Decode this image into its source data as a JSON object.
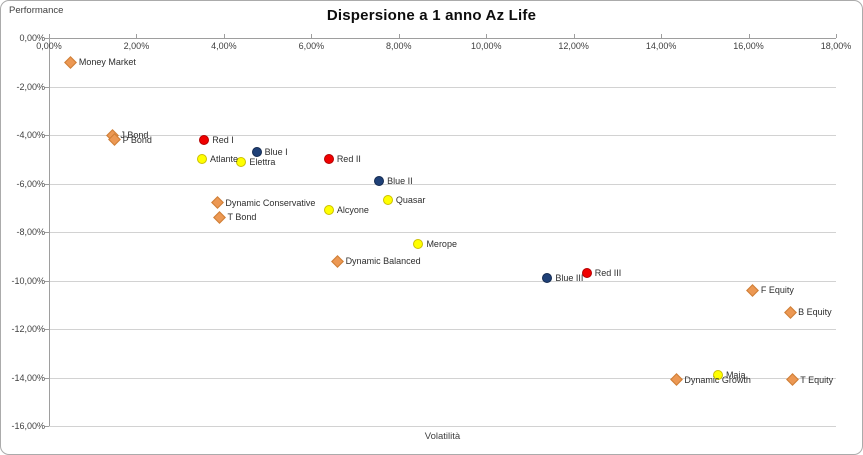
{
  "chart_data": {
    "type": "scatter",
    "title": "Dispersione a 1 anno Az Life",
    "xlabel": "Volatilità",
    "ylabel": "Performance",
    "xlim": [
      0,
      18
    ],
    "ylim": [
      -16,
      0
    ],
    "x_unit": "%",
    "y_unit": "%",
    "grid": "horizontal",
    "legend": "none",
    "x_ticks": [
      "0,00%",
      "2,00%",
      "4,00%",
      "6,00%",
      "8,00%",
      "10,00%",
      "12,00%",
      "14,00%",
      "16,00%",
      "18,00%"
    ],
    "y_ticks": [
      "0,00%",
      "-2,00%",
      "-4,00%",
      "-6,00%",
      "-8,00%",
      "-10,00%",
      "-12,00%",
      "-14,00%",
      "-16,00%"
    ],
    "series": [
      {
        "name": "orange-diamond-funds",
        "marker": "diamond",
        "fill": "#ec9853",
        "border": "#cd7d35",
        "points": [
          {
            "label": "Money Market",
            "x": 0.5,
            "y": -1.0
          },
          {
            "label": "J Bond",
            "x": 1.45,
            "y": -4.0
          },
          {
            "label": "P Bond",
            "x": 1.5,
            "y": -4.2
          },
          {
            "label": "Dynamic Conservative",
            "x": 3.85,
            "y": -6.8
          },
          {
            "label": "T Bond",
            "x": 3.9,
            "y": -7.4
          },
          {
            "label": "Dynamic Balanced",
            "x": 6.6,
            "y": -9.2
          },
          {
            "label": "F Equity",
            "x": 16.1,
            "y": -10.4
          },
          {
            "label": "B Equity",
            "x": 16.95,
            "y": -11.3
          },
          {
            "label": "Dynamic Growth",
            "x": 14.35,
            "y": -14.1
          },
          {
            "label": "T Equity",
            "x": 17.0,
            "y": -14.1
          }
        ]
      },
      {
        "name": "red-circle-funds",
        "marker": "circle",
        "fill": "#f00000",
        "border": "#b40000",
        "points": [
          {
            "label": "Red I",
            "x": 3.55,
            "y": -4.2
          },
          {
            "label": "Red II",
            "x": 6.4,
            "y": -5.0
          },
          {
            "label": "Red III",
            "x": 12.3,
            "y": -9.7
          }
        ]
      },
      {
        "name": "blue-circle-funds",
        "marker": "circle",
        "fill": "#1f4077",
        "border": "#142a50",
        "points": [
          {
            "label": "Blue I",
            "x": 4.75,
            "y": -4.7
          },
          {
            "label": "Blue II",
            "x": 7.55,
            "y": -5.9
          },
          {
            "label": "Blue III",
            "x": 11.4,
            "y": -9.9
          }
        ]
      },
      {
        "name": "yellow-circle-funds",
        "marker": "circle",
        "fill": "#ffff00",
        "border": "#ccc000",
        "points": [
          {
            "label": "Atlante",
            "x": 3.5,
            "y": -5.0
          },
          {
            "label": "Elettra",
            "x": 4.4,
            "y": -5.1
          },
          {
            "label": "Alcyone",
            "x": 6.4,
            "y": -7.1
          },
          {
            "label": "Quasar",
            "x": 7.75,
            "y": -6.7
          },
          {
            "label": "Merope",
            "x": 8.45,
            "y": -8.5
          },
          {
            "label": "Maia",
            "x": 15.3,
            "y": -13.9
          }
        ]
      }
    ]
  },
  "colors": {
    "gridline": "#d2d2d2",
    "axis": "#9e9e9e",
    "tick_label": "#3f3f3f",
    "frame_border": "#ababab",
    "background": "#ffffff"
  }
}
